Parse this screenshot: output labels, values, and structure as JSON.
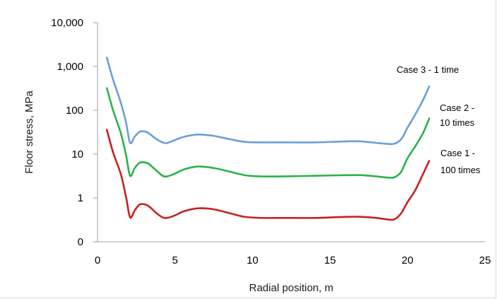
{
  "chart_data": {
    "type": "line",
    "title": "",
    "xlabel": "Radial position, m",
    "ylabel": "Floor stress, MPa",
    "xlim": [
      0,
      25
    ],
    "ylim": [
      0.1,
      10000
    ],
    "yscale": "log",
    "grid": false,
    "legend": "none",
    "x_ticks": [
      0,
      5,
      10,
      15,
      20,
      25
    ],
    "x_tick_labels": [
      "0",
      "5",
      "10",
      "15",
      "20",
      "25"
    ],
    "y_ticks": [
      0.1,
      1,
      10,
      100,
      1000,
      10000
    ],
    "y_tick_labels": [
      "0",
      "1",
      "10",
      "100",
      "1,000",
      "10,000"
    ],
    "series": [
      {
        "label_lines": [
          "Case 3 - 1 time"
        ],
        "color": "#6a9fd8",
        "x": [
          0.6,
          1.0,
          1.5,
          1.85,
          2.1,
          2.4,
          2.7,
          3.0,
          3.3,
          3.8,
          4.2,
          4.5,
          5.0,
          5.6,
          6.5,
          7.5,
          8.5,
          9.5,
          10.5,
          12,
          14,
          16,
          17,
          18,
          18.8,
          19.2,
          19.6,
          20.0,
          20.5,
          21.0,
          21.4
        ],
        "y": [
          1600,
          500,
          150,
          50,
          18,
          25,
          32,
          33,
          30,
          22,
          18.5,
          18,
          21,
          25,
          28,
          26,
          22,
          19,
          18.5,
          18.5,
          18.5,
          19.5,
          19.5,
          18,
          17,
          17.5,
          22,
          40,
          80,
          170,
          350
        ]
      },
      {
        "label_lines": [
          "Case 2 -",
          "10 times"
        ],
        "color": "#2ab24a",
        "x": [
          0.6,
          1.0,
          1.5,
          1.85,
          2.1,
          2.4,
          2.7,
          3.0,
          3.3,
          3.8,
          4.2,
          4.5,
          5.0,
          5.6,
          6.5,
          7.5,
          8.5,
          9.5,
          10.5,
          12,
          14,
          16,
          17,
          18,
          18.8,
          19.2,
          19.6,
          20.0,
          20.5,
          21.0,
          21.4
        ],
        "y": [
          320,
          100,
          30,
          9,
          3.2,
          4.8,
          6.3,
          6.5,
          6,
          4.2,
          3.2,
          3.1,
          3.6,
          4.5,
          5.2,
          4.8,
          4,
          3.3,
          3.1,
          3.1,
          3.2,
          3.3,
          3.3,
          3.1,
          2.9,
          3,
          4,
          8,
          15,
          30,
          65
        ]
      },
      {
        "label_lines": [
          "Case 1 -",
          "100 times"
        ],
        "color": "#c82020",
        "x": [
          0.6,
          1.0,
          1.5,
          1.85,
          2.1,
          2.4,
          2.7,
          3.0,
          3.3,
          3.8,
          4.2,
          4.5,
          5.0,
          5.6,
          6.5,
          7.5,
          8.5,
          9.5,
          10.5,
          12,
          14,
          16,
          17,
          18,
          18.8,
          19.2,
          19.6,
          20.0,
          20.5,
          21.0,
          21.4
        ],
        "y": [
          36,
          11,
          3.5,
          1,
          0.36,
          0.52,
          0.7,
          0.72,
          0.65,
          0.45,
          0.36,
          0.35,
          0.4,
          0.5,
          0.58,
          0.55,
          0.45,
          0.37,
          0.35,
          0.35,
          0.35,
          0.37,
          0.37,
          0.35,
          0.32,
          0.33,
          0.45,
          0.8,
          1.5,
          3.5,
          7
        ]
      }
    ]
  }
}
